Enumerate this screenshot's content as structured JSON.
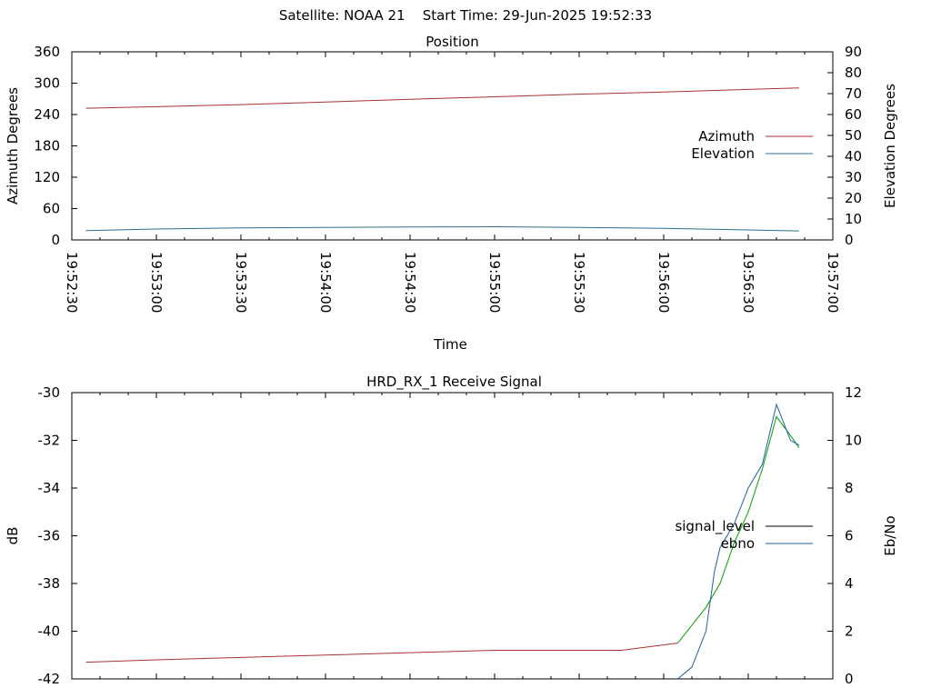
{
  "page": {
    "header": "Satellite: NOAA 21    Start Time: 29-Jun-2025 19:52:33"
  },
  "colors": {
    "azimuth": "#a83232",
    "elevation": "#2f6f8f",
    "signal_level": "#000000",
    "ebno": "#2060a0",
    "signal_segment_green": "#00a000",
    "signal_segment_red": "#a83232"
  },
  "chart_data": [
    {
      "type": "line",
      "title": "Position",
      "xlabel": "Time",
      "ylabel": "Azimuth Degrees",
      "y2label": "Elevation Degrees",
      "x_ticks": [
        "19:52:30",
        "19:53:00",
        "19:53:30",
        "19:54:00",
        "19:54:30",
        "19:55:00",
        "19:55:30",
        "19:56:00",
        "19:56:30",
        "19:57:00"
      ],
      "ylim": [
        0,
        360
      ],
      "y_ticks": [
        0,
        60,
        120,
        180,
        240,
        300,
        360
      ],
      "y2lim": [
        0,
        90
      ],
      "y2_ticks": [
        0,
        10,
        20,
        30,
        40,
        50,
        60,
        70,
        80,
        90
      ],
      "legend_position": "right",
      "grid": false,
      "series": [
        {
          "name": "Azimuth",
          "axis": "y",
          "x": [
            "19:52:35",
            "19:53:00",
            "19:53:30",
            "19:54:00",
            "19:54:30",
            "19:55:00",
            "19:55:30",
            "19:56:00",
            "19:56:30",
            "19:56:48"
          ],
          "values": [
            252,
            255,
            259,
            264,
            269,
            274,
            279,
            283,
            288,
            291
          ]
        },
        {
          "name": "Elevation",
          "axis": "y2",
          "x": [
            "19:52:35",
            "19:53:00",
            "19:53:30",
            "19:54:00",
            "19:54:30",
            "19:55:00",
            "19:55:30",
            "19:56:00",
            "19:56:30",
            "19:56:48"
          ],
          "values": [
            4.5,
            5.2,
            5.8,
            6.0,
            6.2,
            6.3,
            6.0,
            5.5,
            4.8,
            4.3
          ]
        }
      ]
    },
    {
      "type": "line",
      "title": "HRD_RX_1 Receive Signal",
      "xlabel": "",
      "ylabel": "dB",
      "y2label": "Eb/No",
      "ylim": [
        -42,
        -30
      ],
      "y_ticks": [
        -42,
        -40,
        -38,
        -36,
        -34,
        -32,
        -30
      ],
      "y2lim": [
        0,
        12
      ],
      "y2_ticks": [
        0,
        2,
        4,
        6,
        8,
        10,
        12
      ],
      "legend_position": "right",
      "grid": false,
      "series": [
        {
          "name": "signal_level",
          "axis": "y",
          "x": [
            "19:52:35",
            "19:53:00",
            "19:53:30",
            "19:54:00",
            "19:54:30",
            "19:55:00",
            "19:55:30",
            "19:55:45",
            "19:56:05",
            "19:56:15",
            "19:56:20",
            "19:56:25",
            "19:56:30",
            "19:56:35",
            "19:56:40",
            "19:56:45",
            "19:56:48"
          ],
          "values": [
            -41.3,
            -41.2,
            -41.1,
            -41.0,
            -40.9,
            -40.8,
            -40.8,
            -40.8,
            -40.5,
            -39.0,
            -38.0,
            -36.3,
            -35.0,
            -33.2,
            -31.0,
            -31.8,
            -32.3
          ]
        },
        {
          "name": "ebno",
          "axis": "y2",
          "x": [
            "19:56:05",
            "19:56:10",
            "19:56:15",
            "19:56:18",
            "19:56:20",
            "19:56:25",
            "19:56:30",
            "19:56:35",
            "19:56:40",
            "19:56:45",
            "19:56:48"
          ],
          "values": [
            0.0,
            0.5,
            2.0,
            4.5,
            5.5,
            6.5,
            8.0,
            9.0,
            11.5,
            10.0,
            9.8
          ]
        }
      ]
    }
  ]
}
